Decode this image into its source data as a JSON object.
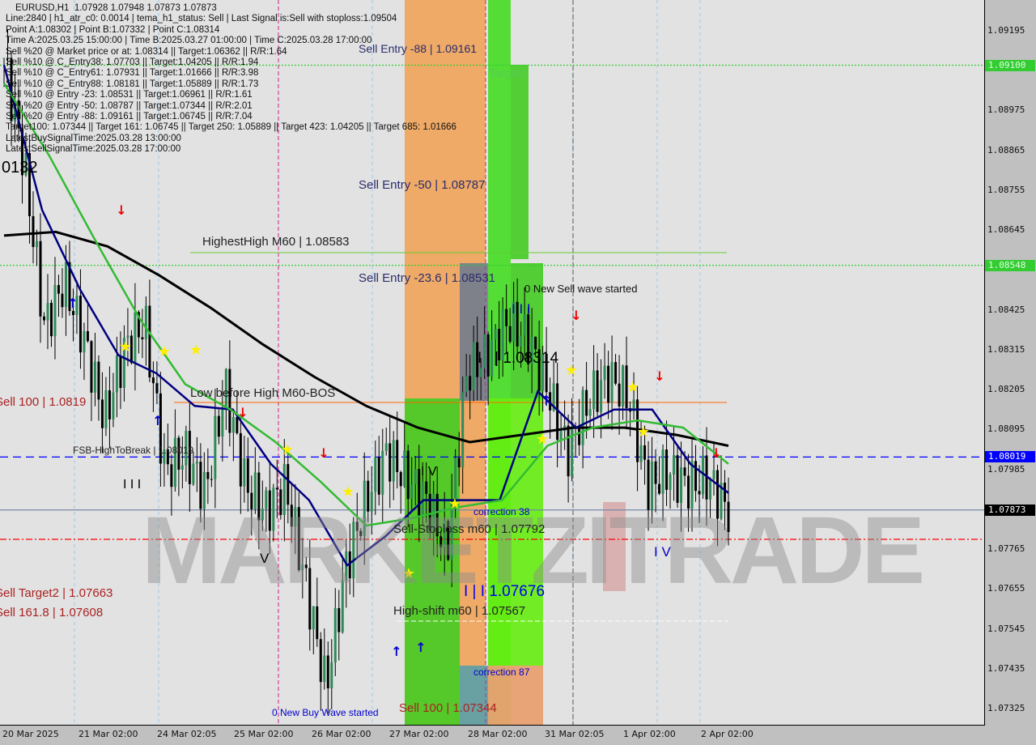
{
  "header": {
    "lines": [
      "EURUSD,H1  1.07928 1.07948 1.07873 1.07873",
      "Line:2840 | h1_atr_c0: 0.0014 | tema_h1_status: Sell | Last Signal is:Sell with stoploss:1.09504",
      "Point A:1.08302 | Point B:1.07332 | Point C:1.08314",
      "Time A:2025.03.25 15:00:00 | Time B:2025.03.27 01:00:00 | Time C:2025.03.28 17:00:00",
      "Sell %20 @ Market price or at: 1.08314 || Target:1.06362 || R/R:1.64",
      "Sell %10 @ C_Entry38: 1.07703 || Target:1.04205 || R/R:1.94",
      "Sell %10 @ C_Entry61: 1.07931 || Target:1.01666 || R/R:3.98",
      "Sell %10 @ C_Entry88: 1.08181 || Target:1.05889 || R/R:1.73",
      "Sell %10 @ Entry -23: 1.08531 || Target:1.06961 || R/R:1.61",
      "Sell %20 @ Entry -50: 1.08787 || Target:1.07344 || R/R:2.01",
      "Sell %20 @ Entry -88: 1.09161 || Target:1.06745 || R/R:7.04",
      "Target100: 1.07344 || Target 161: 1.06745 || Target 250: 1.05889 || Target 423: 1.04205 || Target 685: 1.01666",
      "LatestBuySignalTime:2025.03.28 13:00:00",
      "LatestSellSignalTime:2025.03.28 17:00:00"
    ],
    "corner_value": "0132"
  },
  "watermark": "MARKETZITRADE",
  "annotations": {
    "sell_entry_88": "Sell Entry -88 | 1.09161",
    "target2": "Target2",
    "sell_entry_50": "Sell Entry -50 | 1.08787",
    "highest_high": "HighestHigh   M60 | 1.08583",
    "sell_entry_236": "Sell Entry -23.6 | 1.08531",
    "new_sell_wave": "0 New Sell wave started",
    "wave_iii": "I I I",
    "wave_ii": "I I | 1.08314",
    "low_before_high": "Low before High   M60-BOS",
    "sell_100": "Sell 100 | 1.0819",
    "fsb": "FSB-HighToBreak | 1.08019",
    "wave_iii_left": "I I I",
    "wave_iv": "I V",
    "wave_v": "V",
    "wave_iv_right": "I V",
    "wave_iv_top": "I V",
    "correction38": "correction 38",
    "sell_stoploss": "Sell-Stoploss m60 | 1.07792",
    "sell_target2": "Sell Target2 | 1.07663",
    "sell_1618": "Sell 161.8 | 1.07608",
    "wave_i": "I | I 1.07676",
    "high_shift": "High-shift m60 | 1.07567",
    "correction87": "correction 87",
    "sell_100_low": "Sell 100 | 1.07344",
    "new_buy_wave": "0 New Buy Wave started"
  },
  "chart_data": {
    "type": "candlestick",
    "symbol": "EURUSD",
    "timeframe": "H1",
    "ylim": [
      1.0728,
      1.0934
    ],
    "y_ticks": [
      "1.09195",
      "1.08975",
      "1.08865",
      "1.08755",
      "1.08645",
      "1.08425",
      "1.08315",
      "1.08205",
      "1.08095",
      "1.07985",
      "1.07765",
      "1.07655",
      "1.07545",
      "1.07435",
      "1.07325"
    ],
    "x_ticks": [
      "20 Mar 2025",
      "21 Mar 02:00",
      "24 Mar 02:05",
      "25 Mar 02:00",
      "26 Mar 02:00",
      "27 Mar 02:00",
      "28 Mar 02:00",
      "31 Mar 02:05",
      "1 Apr 02:00",
      "2 Apr 02:00"
    ],
    "price_tags": [
      {
        "value": "1.09100",
        "color": "#33cc33"
      },
      {
        "value": "1.08548",
        "color": "#33cc33"
      },
      {
        "value": "1.08019",
        "color": "#0000ff"
      },
      {
        "value": "1.07873",
        "color": "#000000"
      }
    ],
    "closes": [
      1.0912,
      1.0883,
      1.0838,
      1.085,
      1.0834,
      1.0812,
      1.0832,
      1.0839,
      1.0798,
      1.0803,
      1.0792,
      1.0821,
      1.0794,
      1.0787,
      1.0794,
      1.0767,
      1.0738,
      1.0772,
      1.079,
      1.0803,
      1.0796,
      1.079,
      1.0776,
      1.0825,
      1.083,
      1.0839,
      1.0835,
      1.0821,
      1.0803,
      1.0817,
      1.0824,
      1.0819,
      1.0794,
      1.0798,
      1.0794,
      1.0796,
      1.0787
    ],
    "series": [
      {
        "color": "#000000",
        "values": [
          1.0863,
          1.0864,
          1.086,
          1.0852,
          1.0843,
          1.0833,
          1.0824,
          1.0816,
          1.081,
          1.0806,
          1.0808,
          1.081,
          1.081,
          1.0808,
          1.0805
        ]
      },
      {
        "color": "#000080",
        "values": [
          1.091,
          1.087,
          1.0848,
          1.083,
          1.0825,
          1.0816,
          1.0815,
          1.08,
          1.079,
          1.0772,
          1.078,
          1.079,
          1.079,
          1.079,
          1.082,
          1.081,
          1.0815,
          1.0815,
          1.08,
          1.0792
        ]
      },
      {
        "color": "#33bb33",
        "values": [
          1.0905,
          1.0885,
          1.0862,
          1.084,
          1.0822,
          1.0815,
          1.0806,
          1.0795,
          1.0783,
          1.0785,
          1.0788,
          1.079,
          1.0805,
          1.081,
          1.0812,
          1.081,
          1.08
        ]
      }
    ],
    "levels": [
      {
        "value": 1.091,
        "color": "#33cc33",
        "style": "dotted"
      },
      {
        "value": 1.08548,
        "color": "#33cc33",
        "style": "dotted"
      },
      {
        "value": 1.08019,
        "color": "#0000ff",
        "style": "dashed"
      },
      {
        "value": 1.07873,
        "color": "#7788aa",
        "style": "solid"
      },
      {
        "value": 1.07792,
        "color": "#ff0000",
        "style": "dashdot"
      }
    ]
  }
}
